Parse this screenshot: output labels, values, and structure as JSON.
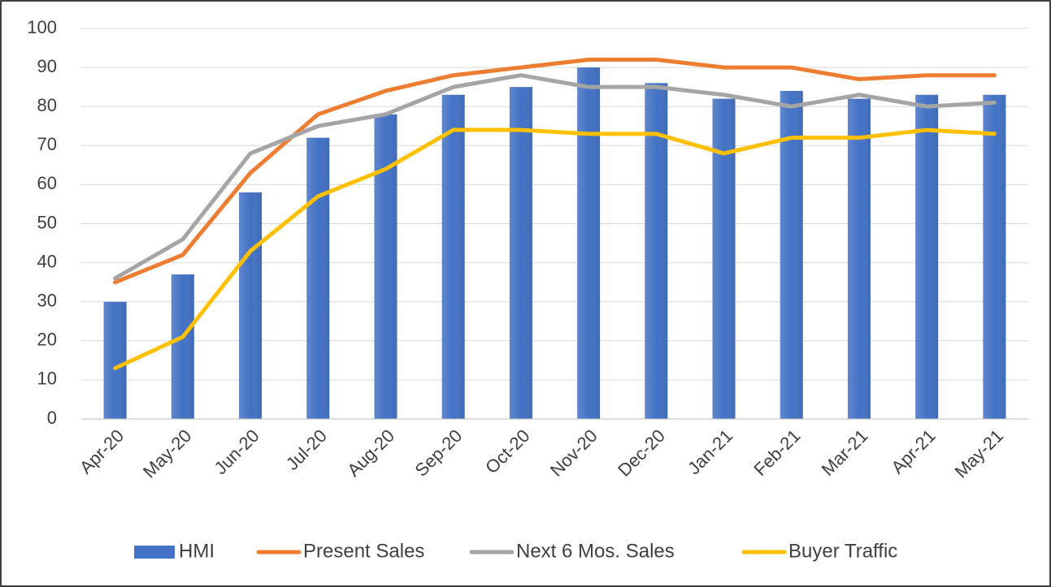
{
  "chart_data": {
    "type": "bar",
    "categories": [
      "Apr-20",
      "May-20",
      "Jun-20",
      "Jul-20",
      "Aug-20",
      "Sep-20",
      "Oct-20",
      "Nov-20",
      "Dec-20",
      "Jan-21",
      "Feb-21",
      "Mar-21",
      "Apr-21",
      "May-21"
    ],
    "series": [
      {
        "name": "HMI",
        "type": "bar",
        "color": "#4472c4",
        "values": [
          30,
          37,
          58,
          72,
          78,
          83,
          85,
          90,
          86,
          82,
          84,
          82,
          83,
          83
        ]
      },
      {
        "name": "Present Sales",
        "type": "line",
        "color": "#ed7d31",
        "values": [
          35,
          42,
          63,
          78,
          84,
          88,
          90,
          92,
          92,
          90,
          90,
          87,
          88,
          88
        ]
      },
      {
        "name": "Next 6 Mos. Sales",
        "type": "line",
        "color": "#a5a5a5",
        "values": [
          36,
          46,
          68,
          75,
          78,
          85,
          88,
          85,
          85,
          83,
          80,
          83,
          80,
          81
        ]
      },
      {
        "name": "Buyer Traffic",
        "type": "line",
        "color": "#ffc000",
        "values": [
          13,
          21,
          43,
          57,
          64,
          74,
          74,
          73,
          73,
          68,
          72,
          72,
          74,
          73
        ]
      }
    ],
    "ylim": [
      0,
      100
    ],
    "yticks": [
      0,
      10,
      20,
      30,
      40,
      50,
      60,
      70,
      80,
      90,
      100
    ],
    "grid": true,
    "legend": "bottom"
  }
}
